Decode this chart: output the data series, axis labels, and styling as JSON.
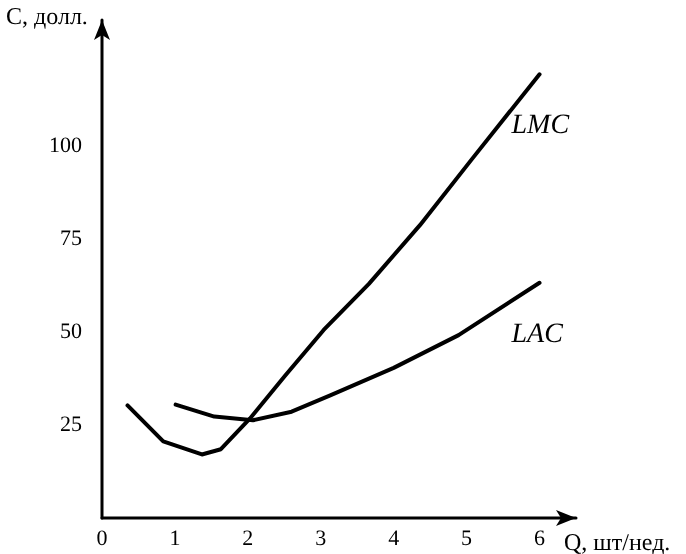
{
  "chart_data": {
    "type": "line",
    "xlabel": "Q, шт/нед.",
    "ylabel": "C, долл.",
    "xlim": [
      0,
      6.5
    ],
    "ylim": [
      0,
      134
    ],
    "xticks": [
      0,
      1,
      2,
      3,
      4,
      5,
      6
    ],
    "yticks": [
      25,
      50,
      75,
      100
    ],
    "grid": false,
    "legend": false,
    "marker": "none",
    "line_style": "solid",
    "series": [
      {
        "name": "LMC",
        "color": "#000000",
        "x": [
          0.35,
          0.84,
          1.37,
          1.63,
          2.03,
          2.51,
          3.04,
          3.66,
          4.36,
          5.07,
          6.0
        ],
        "values": [
          30.3,
          20.6,
          17.1,
          18.5,
          26.8,
          38.3,
          50.6,
          63,
          78.8,
          96.5,
          119.4
        ]
      },
      {
        "name": "LAC",
        "color": "#000000",
        "x": [
          1.01,
          1.54,
          2.07,
          2.6,
          3.13,
          4.0,
          4.89,
          6.0
        ],
        "values": [
          30.5,
          27.3,
          26.3,
          28.6,
          33,
          40.4,
          49.2,
          63.3
        ]
      }
    ]
  }
}
